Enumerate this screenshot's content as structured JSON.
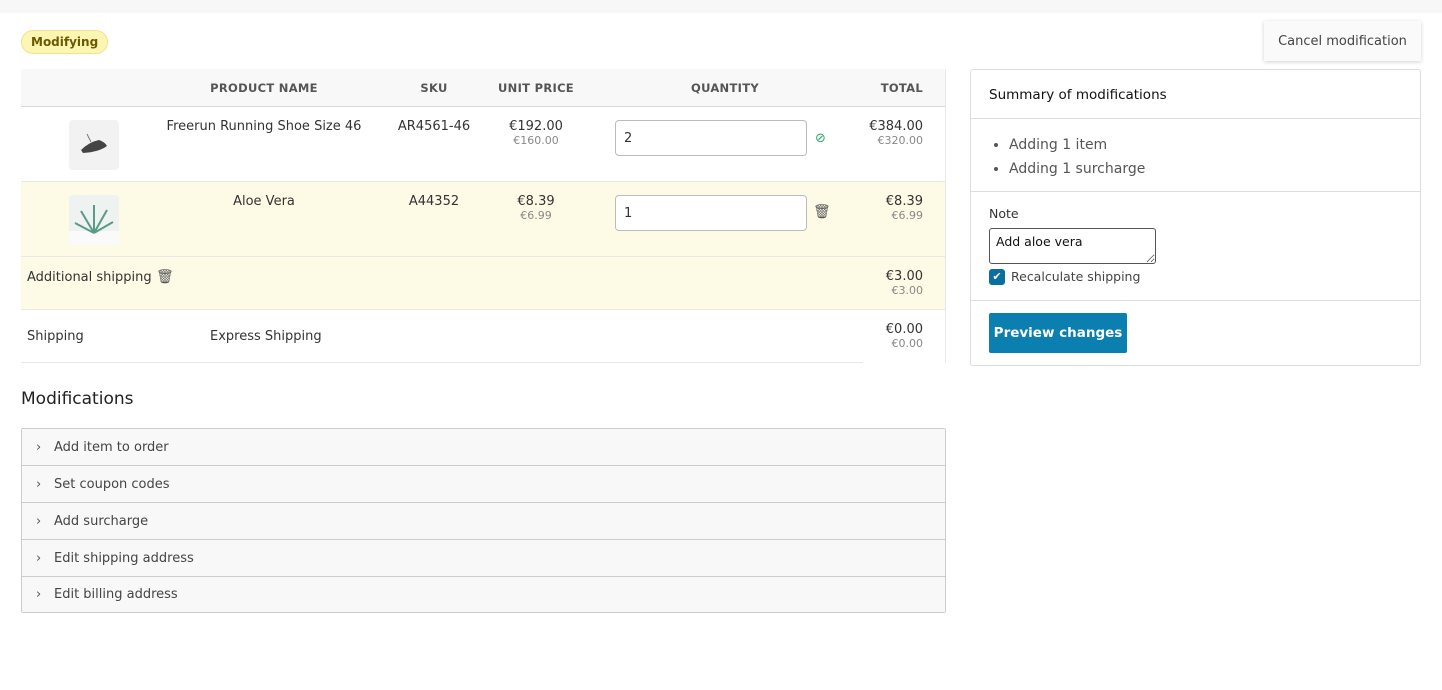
{
  "status_badge": "Modifying",
  "cancel_label": "Cancel modification",
  "table": {
    "headers": [
      "",
      "PRODUCT NAME",
      "SKU",
      "UNIT PRICE",
      "QUANTITY",
      "TOTAL"
    ],
    "items": [
      {
        "name": "Freerun Running Shoe Size 46",
        "sku": "AR4561-46",
        "unit_price": "€192.00",
        "unit_price_net": "€160.00",
        "quantity": "2",
        "status_icon": "check-circle-icon",
        "total": "€384.00",
        "total_net": "€320.00"
      },
      {
        "name": "Aloe Vera",
        "sku": "A44352",
        "unit_price": "€8.39",
        "unit_price_net": "€6.99",
        "quantity": "1",
        "status_icon": "trash-icon",
        "total": "€8.39",
        "total_net": "€6.99"
      }
    ],
    "surcharge": {
      "label": "Additional shipping",
      "total": "€3.00",
      "total_net": "€3.00"
    },
    "shipping": {
      "label": "Shipping",
      "method": "Express Shipping",
      "total": "€0.00",
      "total_net": "€0.00"
    }
  },
  "summary": {
    "title": "Summary of modifications",
    "items": [
      "Adding 1 item",
      "Adding 1 surcharge"
    ],
    "note_label": "Note",
    "note_value": "Add aloe vera",
    "recalc_label": "Recalculate shipping",
    "recalc_checked": true,
    "preview_label": "Preview changes"
  },
  "modifications": {
    "title": "Modifications",
    "sections": [
      "Add item to order",
      "Set coupon codes",
      "Add surcharge",
      "Edit shipping address",
      "Edit billing address"
    ]
  },
  "colors": {
    "accent": "#0a7fb0",
    "modified_row": "#fdfbe6",
    "badge": "#fdf5b3"
  }
}
